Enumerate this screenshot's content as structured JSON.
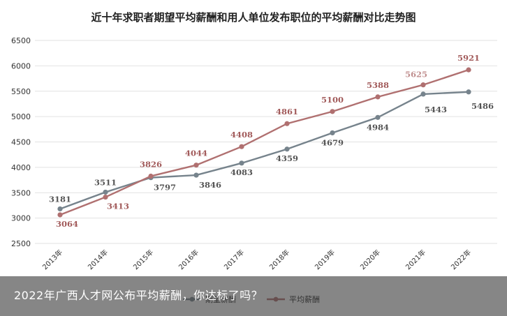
{
  "chart_data": {
    "type": "line",
    "title": "近十年求职者期望平均薪酬和用人单位发布职位的平均薪酬对比走势图",
    "categories": [
      "2013年",
      "2014年",
      "2015年",
      "2016年",
      "2017年",
      "2018年",
      "2019年",
      "2020年",
      "2021年",
      "2022年"
    ],
    "ylim": [
      2500,
      6500
    ],
    "yticks": [
      2500,
      3000,
      3500,
      4000,
      4500,
      5000,
      5500,
      6000,
      6500
    ],
    "grid": true,
    "legend_position": "bottom",
    "series": [
      {
        "name": "期望薪酬",
        "color": "#76838c",
        "values": [
          3181,
          3511,
          3797,
          3846,
          4083,
          4359,
          4679,
          4984,
          5443,
          5486
        ],
        "labels": [
          "3181",
          "3511",
          "3797",
          "3846",
          "4083",
          "4359",
          "4679",
          "4984",
          "5443",
          "5486"
        ]
      },
      {
        "name": "平均薪酬",
        "color": "#b07070",
        "values": [
          3064,
          3413,
          3826,
          4044,
          4408,
          4861,
          5100,
          5388,
          5625,
          5921
        ],
        "labels": [
          "3064",
          "3413",
          "3826",
          "4044",
          "4408",
          "4861",
          "5100",
          "5388",
          "5625",
          "5921"
        ]
      }
    ]
  },
  "caption": {
    "text": "2022年广西人才网公布平均薪酬，你达标了吗？"
  }
}
